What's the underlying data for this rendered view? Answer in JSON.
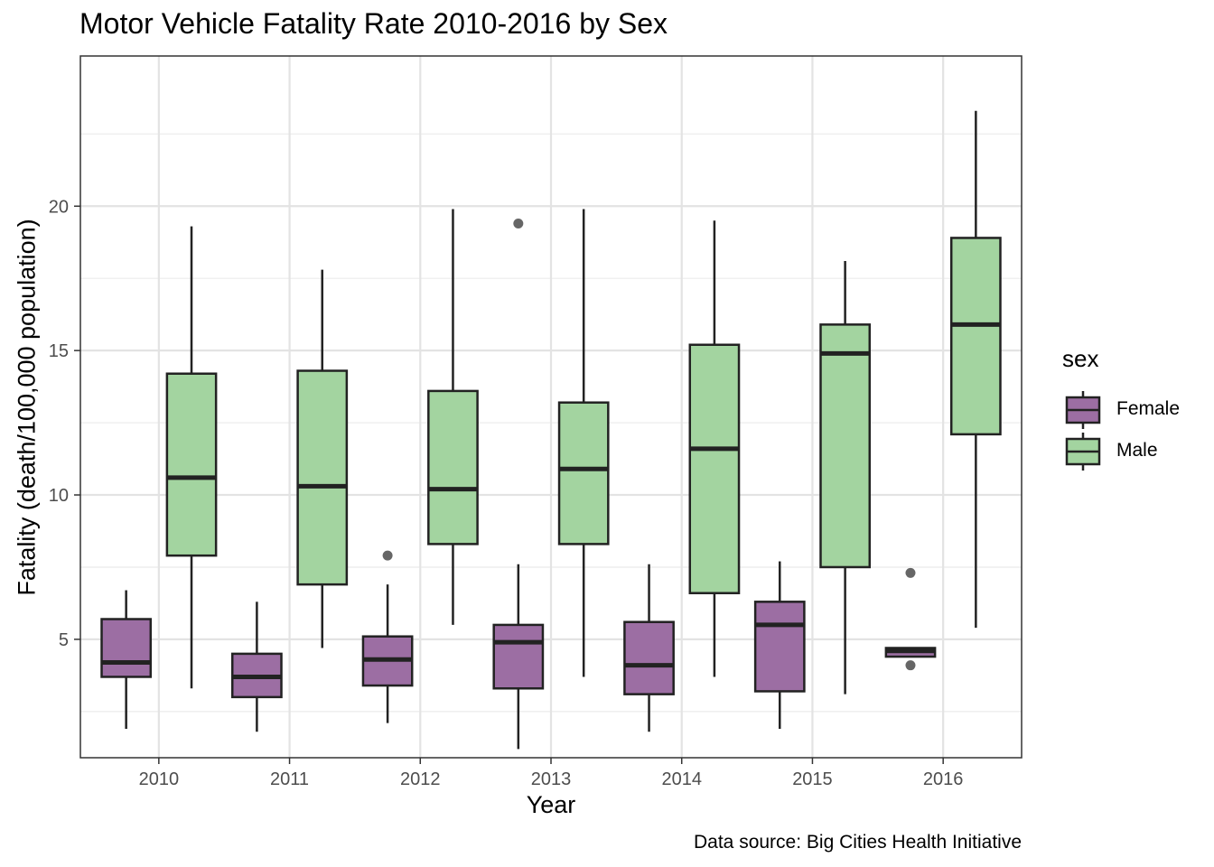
{
  "chart_data": {
    "type": "boxplot",
    "title": "Motor Vehicle Fatality Rate 2010-2016 by Sex",
    "xlabel": "Year",
    "ylabel": "Fatality (death/100,000 population)",
    "caption": "Data source: Big Cities Health Initiative",
    "legend_title": "sex",
    "legend_position": "right",
    "grid": true,
    "ylim": [
      0.9,
      25.2
    ],
    "yticks": [
      5,
      10,
      15,
      20
    ],
    "categories": [
      "2010",
      "2011",
      "2012",
      "2013",
      "2014",
      "2015",
      "2016"
    ],
    "series": [
      {
        "name": "Female",
        "color": "#9c6ea3",
        "boxes": [
          {
            "min": 1.9,
            "q1": 3.7,
            "median": 4.2,
            "q3": 5.7,
            "max": 6.7,
            "outliers": []
          },
          {
            "min": 1.8,
            "q1": 3.0,
            "median": 3.7,
            "q3": 4.5,
            "max": 6.3,
            "outliers": []
          },
          {
            "min": 2.1,
            "q1": 3.4,
            "median": 4.3,
            "q3": 5.1,
            "max": 6.9,
            "outliers": [
              7.9
            ]
          },
          {
            "min": 1.2,
            "q1": 3.3,
            "median": 4.9,
            "q3": 5.5,
            "max": 7.6,
            "outliers": [
              19.4
            ]
          },
          {
            "min": 1.8,
            "q1": 3.1,
            "median": 4.1,
            "q3": 5.6,
            "max": 7.6,
            "outliers": []
          },
          {
            "min": 1.9,
            "q1": 3.2,
            "median": 5.5,
            "q3": 6.3,
            "max": 7.7,
            "outliers": []
          },
          {
            "min": 4.4,
            "q1": 4.4,
            "median": 4.6,
            "q3": 4.7,
            "max": 4.7,
            "outliers": [
              7.3,
              4.1
            ]
          }
        ]
      },
      {
        "name": "Male",
        "color": "#a3d4a0",
        "boxes": [
          {
            "min": 3.3,
            "q1": 7.9,
            "median": 10.6,
            "q3": 14.2,
            "max": 19.3,
            "outliers": []
          },
          {
            "min": 4.7,
            "q1": 6.9,
            "median": 10.3,
            "q3": 14.3,
            "max": 17.8,
            "outliers": []
          },
          {
            "min": 5.5,
            "q1": 8.3,
            "median": 10.2,
            "q3": 13.6,
            "max": 19.9,
            "outliers": []
          },
          {
            "min": 3.7,
            "q1": 8.3,
            "median": 10.9,
            "q3": 13.2,
            "max": 19.9,
            "outliers": []
          },
          {
            "min": 3.7,
            "q1": 6.6,
            "median": 11.6,
            "q3": 15.2,
            "max": 19.5,
            "outliers": []
          },
          {
            "min": 3.1,
            "q1": 7.5,
            "median": 14.9,
            "q3": 15.9,
            "max": 18.1,
            "outliers": []
          },
          {
            "min": 5.4,
            "q1": 12.1,
            "median": 15.9,
            "q3": 18.9,
            "max": 23.3,
            "outliers": []
          }
        ]
      }
    ]
  }
}
